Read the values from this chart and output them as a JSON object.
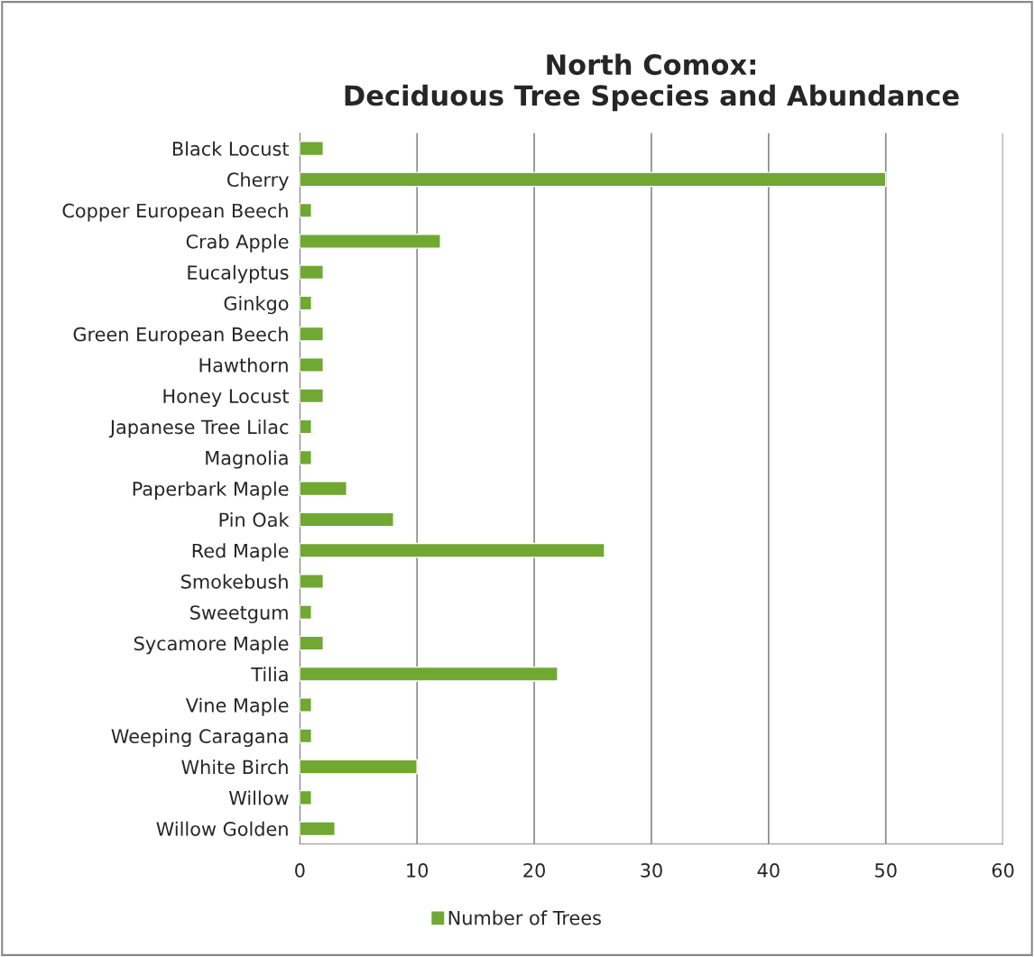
{
  "chart_data": {
    "type": "bar",
    "orientation": "horizontal",
    "title": "North Comox:\nDeciduous Tree Species and Abundance",
    "categories": [
      "Black Locust",
      "Cherry",
      "Copper European Beech",
      "Crab Apple",
      "Eucalyptus",
      "Ginkgo",
      "Green European Beech",
      "Hawthorn",
      "Honey Locust",
      "Japanese Tree Lilac",
      "Magnolia",
      "Paperbark Maple",
      "Pin Oak",
      "Red Maple",
      "Smokebush",
      "Sweetgum",
      "Sycamore Maple",
      "Tilia",
      "Vine Maple",
      "Weeping Caragana",
      "White Birch",
      "Willow",
      "Willow Golden"
    ],
    "series": [
      {
        "name": "Number of Trees",
        "color": "#70a832",
        "values": [
          2,
          50,
          1,
          12,
          2,
          1,
          2,
          2,
          2,
          1,
          1,
          4,
          8,
          26,
          2,
          1,
          2,
          22,
          1,
          1,
          10,
          1,
          3
        ]
      }
    ],
    "xlim": [
      0,
      60
    ],
    "xticks": [
      0,
      10,
      20,
      30,
      40,
      50,
      60
    ],
    "grid": "x",
    "legend": "bottom"
  }
}
